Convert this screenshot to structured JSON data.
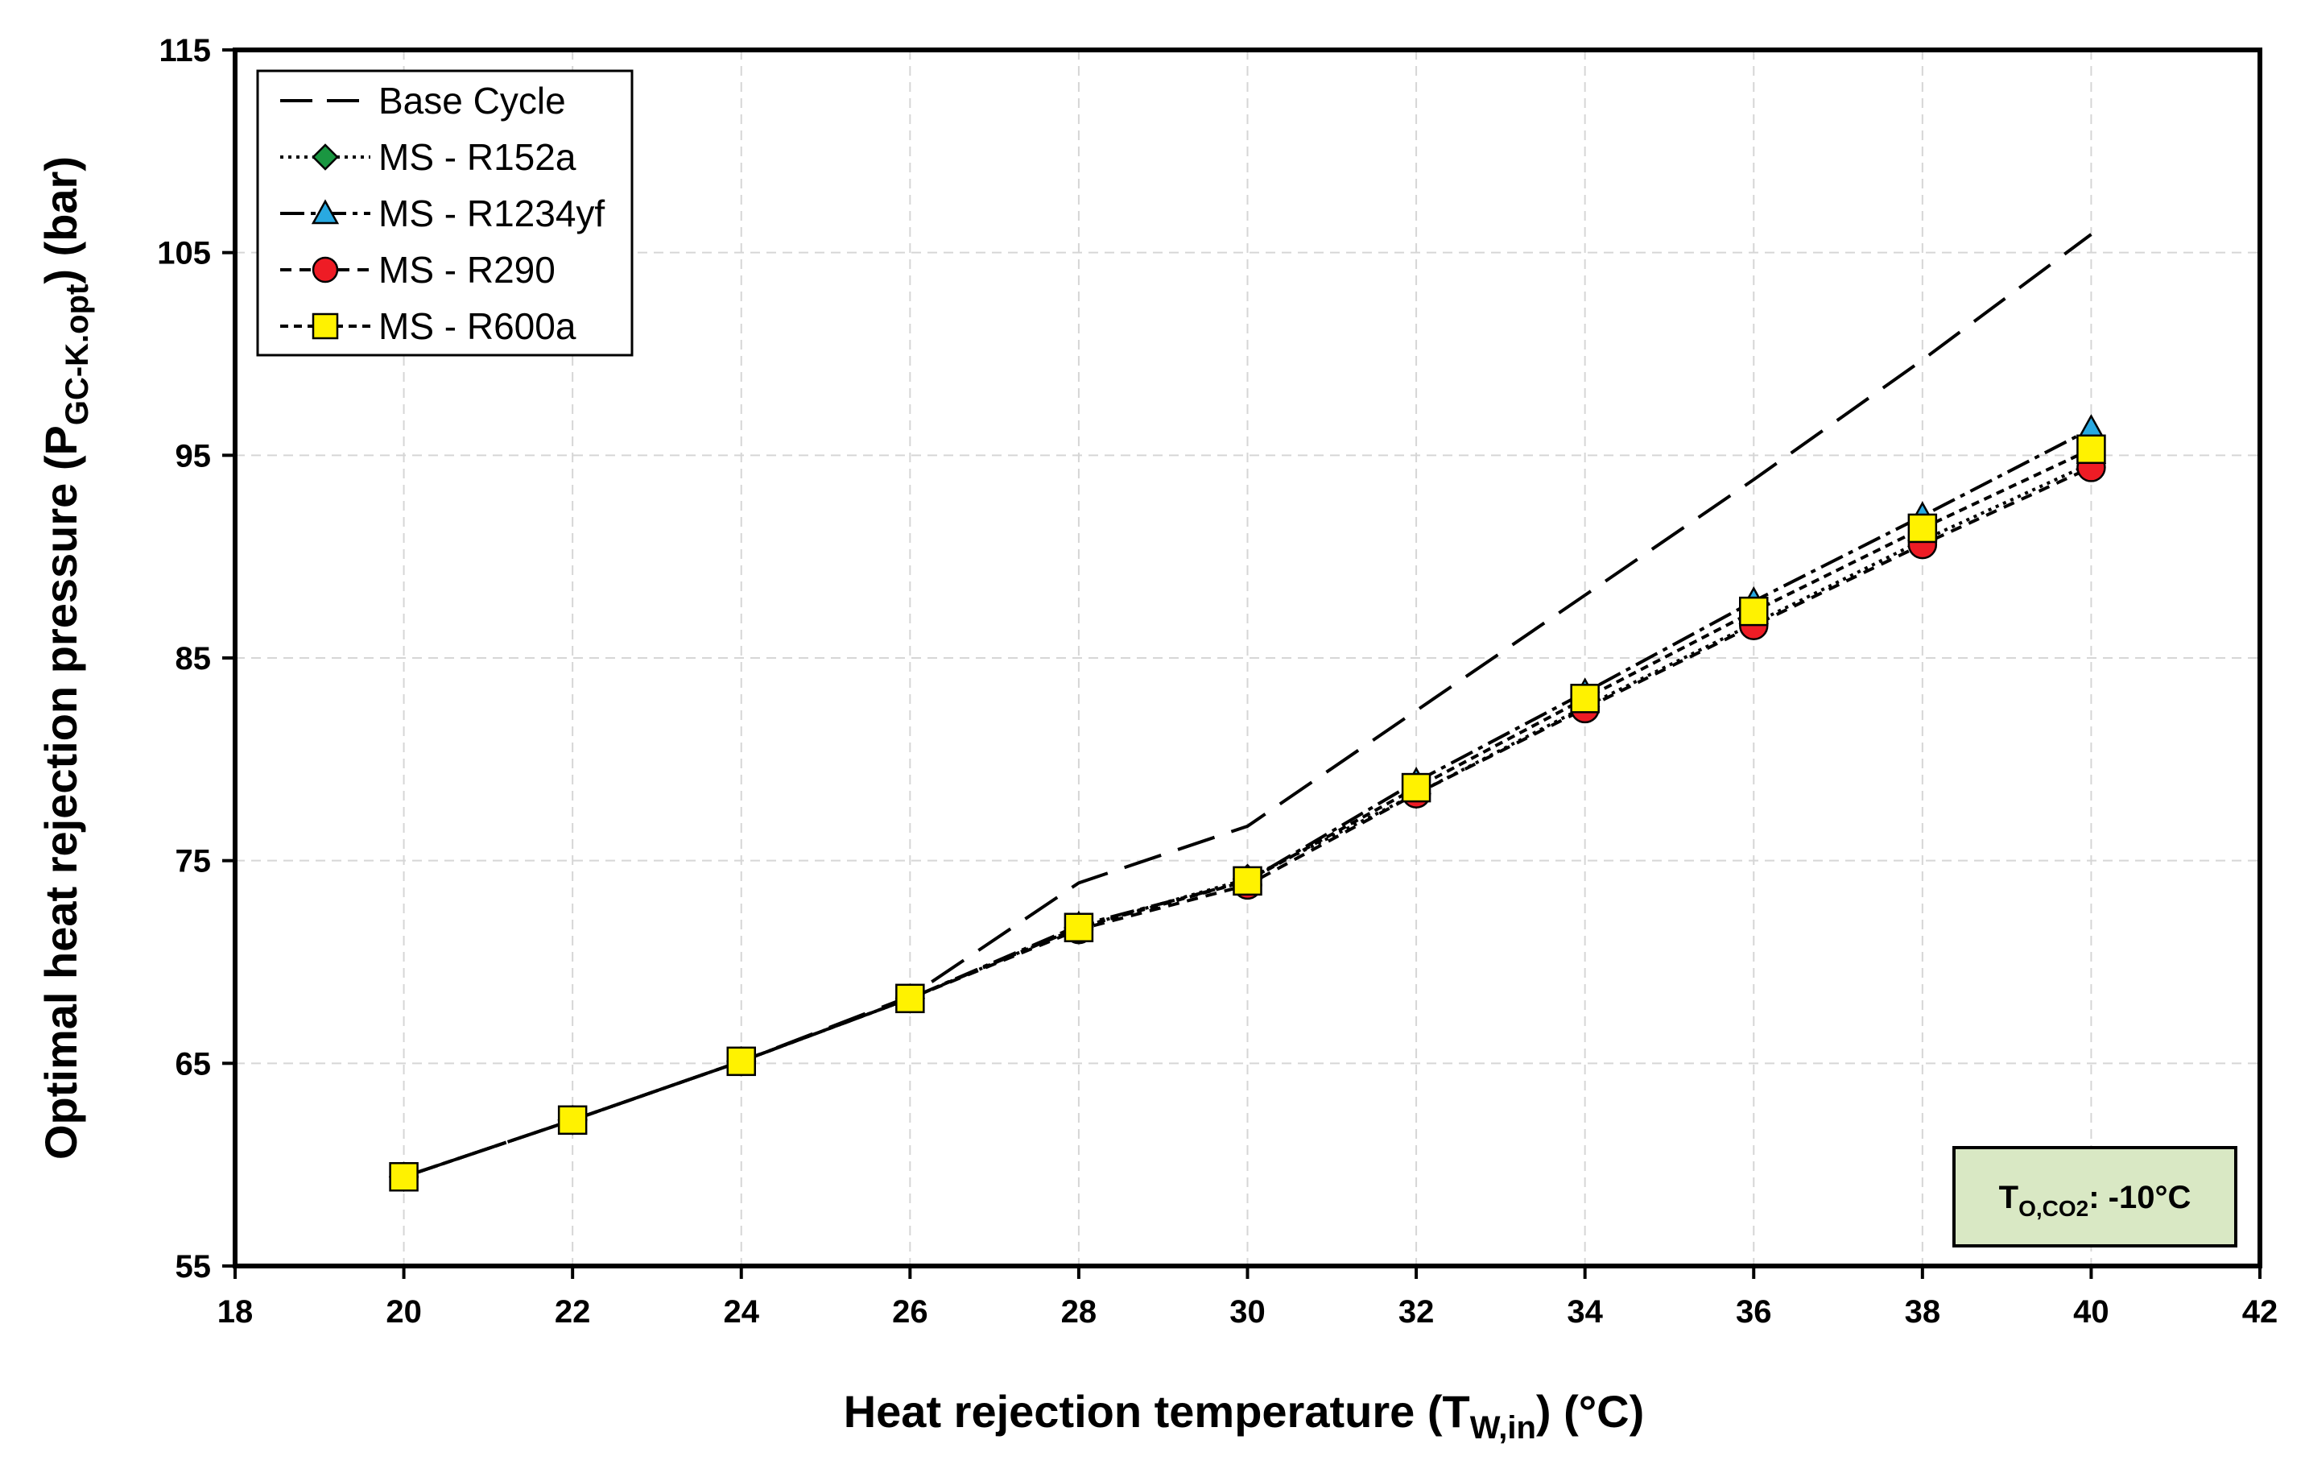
{
  "chart_data": {
    "type": "line",
    "title": "",
    "xlabel": {
      "main": "Heat rejection temperature (T",
      "sub": "W,in",
      "end": ") (°C)"
    },
    "ylabel": {
      "main": "Optimal heat rejection pressure (P",
      "sub": "GC-K.opt",
      "end": ") (bar)"
    },
    "xlim": [
      18,
      42
    ],
    "ylim": [
      55,
      115
    ],
    "xticks": [
      "18",
      "20",
      "22",
      "24",
      "26",
      "28",
      "30",
      "32",
      "34",
      "36",
      "38",
      "40",
      "42"
    ],
    "yticks": [
      "55",
      "65",
      "75",
      "85",
      "95",
      "105",
      "115"
    ],
    "grid": true,
    "legend_position": "top-left",
    "x": [
      20,
      22,
      24,
      26,
      28,
      30,
      32,
      34,
      36,
      38,
      40
    ],
    "series": [
      {
        "name": "Base Cycle",
        "values": [
          59.4,
          62.2,
          65.1,
          68.3,
          73.9,
          76.7,
          82.4,
          88.1,
          93.8,
          99.7,
          105.9
        ],
        "color": "#000000",
        "marker": "none",
        "dash": "48 22"
      },
      {
        "name": "MS - R152a",
        "values": [
          59.4,
          62.2,
          65.1,
          68.2,
          71.7,
          74.1,
          78.3,
          82.6,
          86.7,
          90.8,
          94.6
        ],
        "color": "#000000",
        "marker": "diamond",
        "markerFill": "#1a9641",
        "dash": "4 6"
      },
      {
        "name": "MS - R1234yf",
        "values": [
          59.4,
          62.2,
          65.1,
          68.2,
          71.8,
          74.0,
          78.9,
          83.3,
          87.8,
          92.0,
          96.3
        ],
        "color": "#000000",
        "marker": "triangle",
        "markerFill": "#29a9e1",
        "dash": "30 8 6 8"
      },
      {
        "name": "MS - R290",
        "values": [
          59.4,
          62.2,
          65.1,
          68.2,
          71.6,
          73.8,
          78.3,
          82.5,
          86.6,
          90.6,
          94.4
        ],
        "color": "#000000",
        "marker": "circle",
        "markerFill": "#ee1c25",
        "dash": "14 10"
      },
      {
        "name": "MS - R600a",
        "values": [
          59.4,
          62.2,
          65.1,
          68.2,
          71.7,
          74.0,
          78.6,
          83.0,
          87.3,
          91.4,
          95.3
        ],
        "color": "#000000",
        "marker": "square",
        "markerFill": "#fff200",
        "dash": "10 7"
      }
    ],
    "annotation": {
      "prefix": "T",
      "sub": "O,CO2",
      "suffix": ": -10°C",
      "background": "#d9e8c4"
    }
  }
}
